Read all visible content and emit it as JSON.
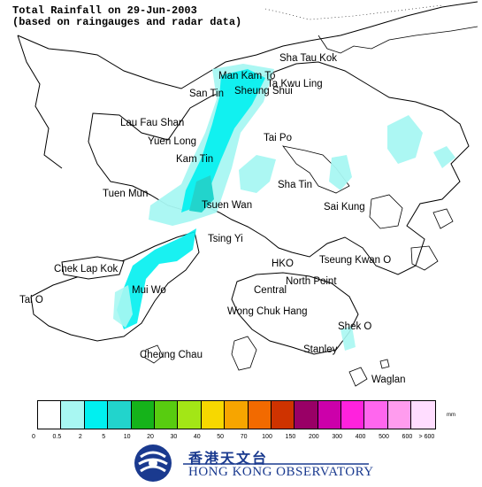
{
  "title": {
    "line1": "Total Rainfall on 29-Jun-2003",
    "line2": "(based on raingauges and radar data)"
  },
  "places": {
    "sha_tau_kok": "Sha Tau Kok",
    "mai_kam_to": "Man Kam To",
    "ta_kwu_ling": "Ta Kwu Ling",
    "san_tin": "San Tin",
    "sheung_shui": "Sheung Shui",
    "lau_fau_shan": "Lau Fau Shan",
    "yuen_long": "Yuen Long",
    "tai_po": "Tai Po",
    "kam_tin": "Kam Tin",
    "tuen_mun": "Tuen Mun",
    "sha_tin": "Sha Tin",
    "tsuen_wan": "Tsuen Wan",
    "sai_kung": "Sai Kung",
    "tsing_yi": "Tsing Yi",
    "chek_lap_kok": "Chek Lap Kok",
    "hko": "HKO",
    "tseung_kwan_o": "Tseung Kwan O",
    "tai_o": "Tai O",
    "mui_wo": "Mui Wo",
    "north_point": "North Point",
    "central": "Central",
    "wong_chuk_hang": "Wong Chuk Hang",
    "shek_o": "Shek O",
    "cheung_chau": "Cheung Chau",
    "stanley": "Stanley",
    "waglan": "Waglan"
  },
  "legend": {
    "unit": "mm",
    "colors": [
      "#ffffff",
      "#a8f7f2",
      "#00f0f0",
      "#22d4cc",
      "#15b31a",
      "#58cc10",
      "#a3e616",
      "#f7d800",
      "#f7a500",
      "#f26a00",
      "#cf3300",
      "#990066",
      "#cc00aa",
      "#ff22dd",
      "#ff66ee",
      "#ff9cee",
      "#ffddff"
    ],
    "ticks": [
      "0",
      "0.5",
      "2",
      "5",
      "10",
      "20",
      "30",
      "40",
      "50",
      "70",
      "100",
      "150",
      "200",
      "300",
      "400",
      "500",
      "600",
      "> 600"
    ]
  },
  "rain_colors": {
    "light": "#a8f7f2",
    "medium": "#00f0f0",
    "heavy": "#22d4cc"
  },
  "logo": {
    "chinese": "香港天文台",
    "english": "HONG KONG OBSERVATORY",
    "brand_color": "#1a3a8f"
  }
}
